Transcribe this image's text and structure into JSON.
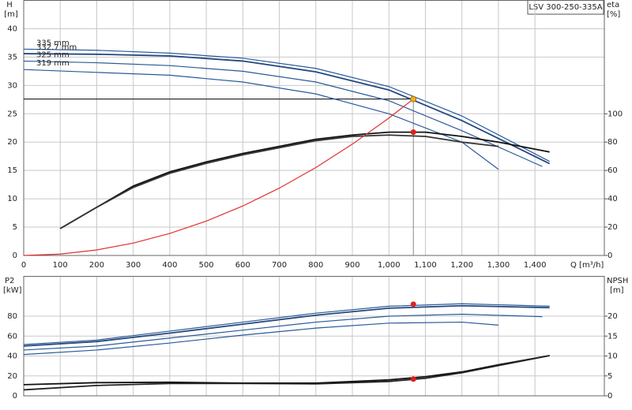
{
  "chart_data": [
    {
      "type": "line",
      "title": "LSV 300-250-335A",
      "y_label": "H",
      "y_unit": "[m]",
      "y2_label": "eta",
      "y2_unit": "[%]",
      "x_label": "Q [m³/h]",
      "xlim": [
        0,
        1590
      ],
      "xticks": [
        0,
        100,
        200,
        300,
        400,
        500,
        600,
        700,
        800,
        900,
        {
          "value": 1000,
          "label": "1,000"
        },
        {
          "value": 1100,
          "label": "1,100"
        },
        {
          "value": 1200,
          "label": "1,200"
        },
        {
          "value": 1300,
          "label": "1,300"
        },
        {
          "value": 1400,
          "label": "1,400"
        }
      ],
      "ylim": [
        0,
        45
      ],
      "yticks": [
        0,
        5,
        10,
        15,
        20,
        25,
        30,
        35,
        40
      ],
      "y2lim": [
        0,
        180
      ],
      "y2ticks": [
        0,
        20,
        40,
        60,
        80,
        100
      ],
      "grid": true,
      "series": [
        {
          "name": "335 mm",
          "color": "#2a5a9a",
          "x": [
            0,
            200,
            400,
            600,
            800,
            1000,
            1200,
            1440
          ],
          "values": [
            36.4,
            36.2,
            35.7,
            34.8,
            33.0,
            29.8,
            24.6,
            16.6
          ]
        },
        {
          "name": "332.7 mm",
          "color": "#24487e",
          "x": [
            0,
            200,
            400,
            600,
            800,
            1000,
            1200,
            1440
          ],
          "values": [
            35.6,
            35.5,
            35.2,
            34.3,
            32.4,
            29.2,
            23.8,
            16.2
          ]
        },
        {
          "name": "325 mm",
          "color": "#2a5a9a",
          "x": [
            0,
            200,
            400,
            600,
            800,
            1000,
            1200,
            1420
          ],
          "values": [
            34.3,
            34.0,
            33.5,
            32.5,
            30.6,
            27.3,
            22.0,
            15.7
          ]
        },
        {
          "name": "319 mm",
          "color": "#2a5a9a",
          "x": [
            0,
            200,
            400,
            600,
            800,
            1000,
            1200,
            1300
          ],
          "values": [
            32.8,
            32.3,
            31.8,
            30.6,
            28.5,
            25.0,
            20.0,
            15.2
          ]
        },
        {
          "color": "#111111",
          "axis": "y2",
          "x": [
            100,
            200,
            300,
            400,
            500,
            600,
            700,
            800,
            900,
            1000,
            1100,
            1200,
            1300,
            1440
          ],
          "values": [
            19,
            34,
            49,
            59,
            66,
            72,
            77,
            82,
            85,
            87,
            87,
            84,
            80,
            73
          ]
        },
        {
          "color": "#333333",
          "axis": "y2",
          "x": [
            100,
            200,
            300,
            400,
            500,
            600,
            700,
            800,
            900,
            1000,
            1100,
            1200,
            1300
          ],
          "values": [
            19,
            34,
            48,
            58,
            65,
            71,
            76,
            81,
            84,
            85,
            84,
            80,
            77
          ]
        },
        {
          "color": "#e03030",
          "x": [
            0,
            100,
            200,
            300,
            400,
            500,
            600,
            700,
            800,
            900,
            1000,
            1067
          ],
          "values": [
            0,
            0.24,
            0.97,
            2.18,
            3.88,
            6.06,
            8.73,
            11.88,
            15.51,
            19.64,
            24.24,
            27.6
          ]
        }
      ],
      "duty_point": {
        "q": 1067,
        "h": 27.6,
        "eta": 87,
        "h_color": "#f0b020",
        "eta_color": "#e02020"
      }
    },
    {
      "type": "line",
      "y_label": "P2",
      "y_unit": "[kW]",
      "y2_label": "NPSH",
      "y2_unit": "[m]",
      "xlim": [
        0,
        1590
      ],
      "xgrid": [
        0,
        100,
        200,
        300,
        400,
        500,
        600,
        700,
        800,
        900,
        1000,
        1100,
        1200,
        1300,
        1400
      ],
      "ylim": [
        0,
        120
      ],
      "yticks": [
        0,
        20,
        40,
        60,
        80
      ],
      "y2lim": [
        0,
        30
      ],
      "y2ticks": [
        0,
        5,
        10,
        15,
        20
      ],
      "grid": true,
      "series": [
        {
          "color": "#2a5a9a",
          "x": [
            0,
            200,
            400,
            600,
            800,
            1000,
            1200,
            1440
          ],
          "values": [
            51.5,
            56,
            65,
            74,
            83,
            90,
            92.5,
            90
          ]
        },
        {
          "color": "#24487e",
          "x": [
            0,
            200,
            400,
            600,
            800,
            1000,
            1200,
            1440
          ],
          "values": [
            50,
            54.5,
            63,
            72,
            81,
            88,
            90.5,
            88.5
          ]
        },
        {
          "color": "#2a5a9a",
          "x": [
            0,
            200,
            400,
            600,
            800,
            1000,
            1200,
            1420
          ],
          "values": [
            46,
            50,
            58,
            66,
            74,
            80,
            82,
            79.5
          ]
        },
        {
          "color": "#2a5a9a",
          "x": [
            0,
            200,
            400,
            600,
            800,
            1000,
            1200,
            1300
          ],
          "values": [
            41.5,
            46,
            53,
            61,
            68,
            73,
            74,
            71
          ]
        },
        {
          "color": "#111111",
          "axis": "y2",
          "x": [
            0,
            200,
            400,
            600,
            800,
            1000,
            1100,
            1200,
            1300,
            1440
          ],
          "values": [
            2.8,
            3.3,
            3.4,
            3.2,
            3.2,
            4.0,
            4.8,
            6.0,
            7.8,
            10.1
          ]
        },
        {
          "color": "#222222",
          "axis": "y2",
          "x": [
            0,
            200,
            400,
            600,
            800,
            1000,
            1100,
            1200,
            1300,
            1440
          ],
          "values": [
            1.5,
            2.6,
            3.1,
            3.1,
            3.0,
            3.6,
            4.4,
            5.8,
            7.6,
            10.1
          ]
        }
      ],
      "duty_point": {
        "q": 1067,
        "p2": 92,
        "npsh": 4.2,
        "color": "#e02020"
      }
    }
  ]
}
